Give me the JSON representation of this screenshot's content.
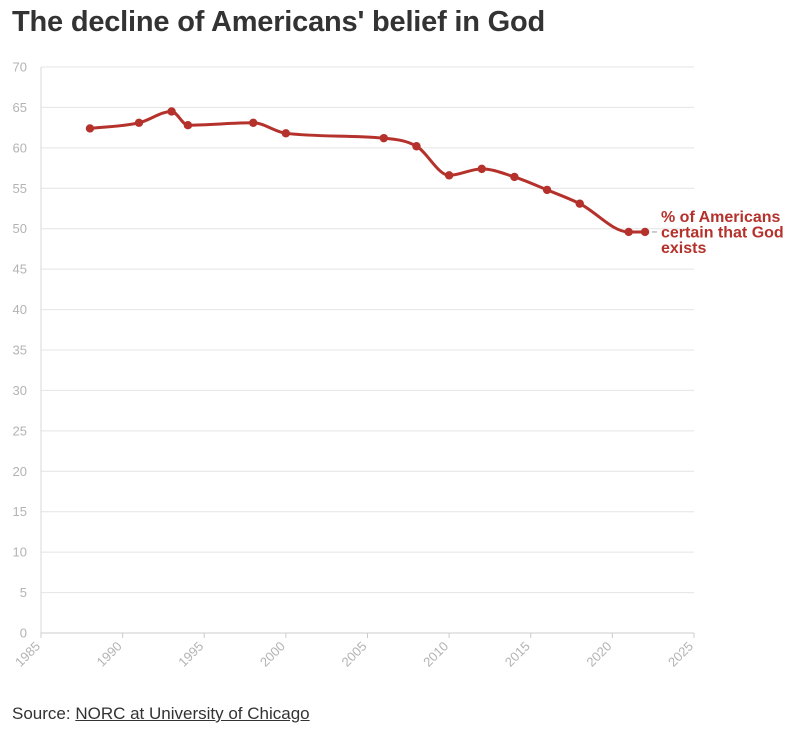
{
  "chart_data": {
    "type": "line",
    "title": "The decline of Americans' belief in God",
    "xlabel": "",
    "ylabel": "",
    "xlim": [
      1985,
      2025
    ],
    "ylim": [
      0,
      70
    ],
    "x_ticks": [
      "1985",
      "1990",
      "1995",
      "2000",
      "2005",
      "2010",
      "2015",
      "2020",
      "2025"
    ],
    "y_ticks": [
      "0",
      "5",
      "10",
      "15",
      "20",
      "25",
      "30",
      "35",
      "40",
      "45",
      "50",
      "55",
      "60",
      "65",
      "70"
    ],
    "grid": true,
    "series": [
      {
        "name": "% of Americans certain that God exists",
        "color": "#b5312c",
        "x": [
          1988,
          1991,
          1993,
          1994,
          1998,
          2000,
          2006,
          2008,
          2010,
          2012,
          2014,
          2016,
          2018,
          2021,
          2022
        ],
        "values": [
          62.4,
          63.1,
          64.5,
          62.8,
          63.1,
          61.8,
          61.2,
          60.2,
          56.6,
          57.4,
          56.4,
          54.8,
          53.1,
          49.6,
          49.6
        ]
      }
    ],
    "series_label_lines": [
      "% of Americans",
      "certain that God",
      "exists"
    ]
  },
  "source": {
    "prefix": "Source: ",
    "link_text": "NORC at University of Chicago"
  }
}
